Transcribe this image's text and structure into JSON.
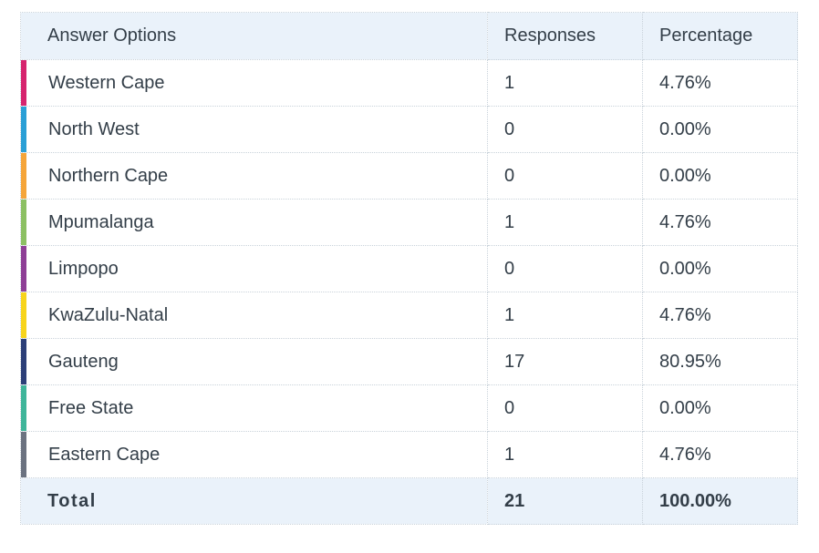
{
  "header": {
    "answer_options": "Answer Options",
    "responses": "Responses",
    "percentage": "Percentage"
  },
  "chart_data": {
    "type": "table",
    "columns": [
      "Answer Options",
      "Responses",
      "Percentage"
    ],
    "rows": [
      {
        "label": "Western Cape",
        "responses": "1",
        "percentage": "4.76%",
        "color": "#d6246e"
      },
      {
        "label": "North West",
        "responses": "0",
        "percentage": "0.00%",
        "color": "#2a9fd6"
      },
      {
        "label": "Northern Cape",
        "responses": "0",
        "percentage": "0.00%",
        "color": "#f5a53a"
      },
      {
        "label": "Mpumalanga",
        "responses": "1",
        "percentage": "4.76%",
        "color": "#8cc063"
      },
      {
        "label": "Limpopo",
        "responses": "0",
        "percentage": "0.00%",
        "color": "#8e3f96"
      },
      {
        "label": "KwaZulu-Natal",
        "responses": "1",
        "percentage": "4.76%",
        "color": "#f7d41c"
      },
      {
        "label": "Gauteng",
        "responses": "17",
        "percentage": "80.95%",
        "color": "#2c3f78"
      },
      {
        "label": "Free State",
        "responses": "0",
        "percentage": "0.00%",
        "color": "#3fb59a"
      },
      {
        "label": "Eastern Cape",
        "responses": "1",
        "percentage": "4.76%",
        "color": "#6b7280"
      }
    ],
    "total": {
      "label": "Total",
      "responses": "21",
      "percentage": "100.00%"
    }
  }
}
